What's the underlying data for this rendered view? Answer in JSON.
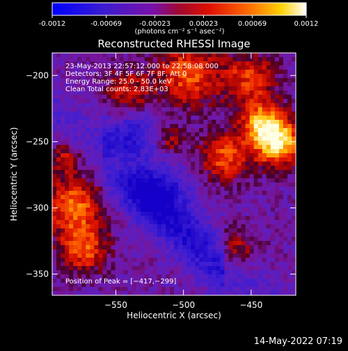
{
  "colorbar": {
    "tick_labels": [
      "-0.0012",
      "-0.00069",
      "-0.00023",
      "0.00023",
      "0.00069",
      "0.0012"
    ],
    "tick_values": [
      -0.0012,
      -0.00069,
      -0.00023,
      0.00023,
      0.00069,
      0.0012
    ],
    "range": [
      -0.0012,
      0.0012
    ],
    "units_label": "(photons cm⁻² s⁻¹ asec⁻²)",
    "colormap": "blue-purple-red-orange-yellow-white"
  },
  "chart_data": {
    "type": "heatmap",
    "title": "Reconstructed RHESSI Image",
    "xlabel": "Heliocentric X (arcsec)",
    "ylabel": "Heliocentric Y (arcsec)",
    "xlim": [
      -597,
      -417
    ],
    "ylim": [
      -366,
      -183
    ],
    "x_ticks": [
      -550,
      -500,
      -450
    ],
    "x_tick_labels": [
      "−550",
      "−500",
      "−450"
    ],
    "y_ticks": [
      -200,
      -250,
      -300,
      -350
    ],
    "y_tick_labels": [
      "−200",
      "−250",
      "−300",
      "−350"
    ],
    "annotations": [
      "23-May-2013 22:57:12.000 to 22:58:08.000",
      "Detectors: 3F 4F 5F 6F 7F 8F, Att 0",
      "Energy Range: 25.0 - 50.0 keV",
      "Clean     Total counts: 2.83E+03"
    ],
    "peak_label": "Position of Peak = [−417,−299]",
    "peak_position": [
      -417,
      -299
    ],
    "grid": false
  },
  "footer": {
    "timestamp": "14-May-2022 07:19"
  }
}
